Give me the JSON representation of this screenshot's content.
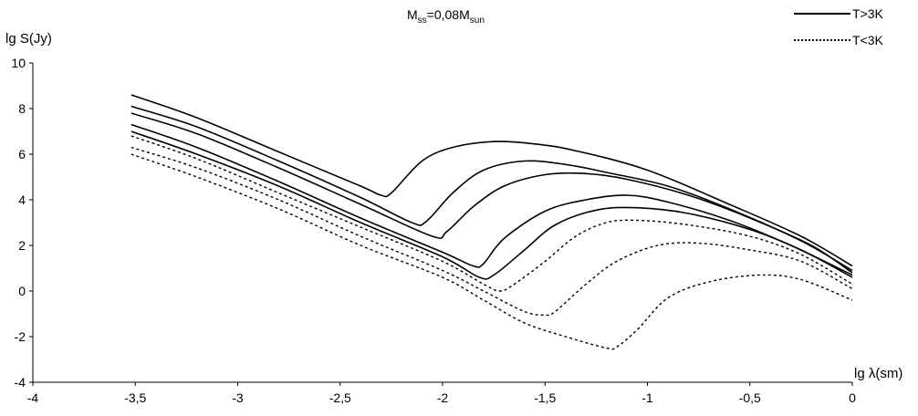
{
  "chart_data": {
    "type": "line",
    "title": {
      "main": "M",
      "sub1": "ss",
      "mid": "=0,08M",
      "sub2": "sun"
    },
    "ylabel": "lg S(Jy)",
    "xlabel": "lg λ(sm)",
    "xlim": [
      -4,
      0
    ],
    "ylim": [
      -4,
      10
    ],
    "x_ticks": [
      -4,
      -3.5,
      -3,
      -2.5,
      -2,
      -1.5,
      -1,
      -0.5,
      0
    ],
    "x_tick_labels": [
      "-4",
      "-3,5",
      "-3",
      "-2,5",
      "-2",
      "-1,5",
      "-1",
      "-0,5",
      "0"
    ],
    "y_ticks": [
      -4,
      -2,
      0,
      2,
      4,
      6,
      8,
      10
    ],
    "y_tick_labels": [
      "-4",
      "-2",
      "0",
      "2",
      "4",
      "6",
      "8",
      "10"
    ],
    "legend": [
      {
        "label": "T>3K",
        "style": "solid"
      },
      {
        "label": "T<3K",
        "style": "dotted"
      }
    ],
    "legend_position": "top-right",
    "grid": false,
    "series": [
      {
        "style": "solid",
        "points": [
          [
            -3.52,
            8.6
          ],
          [
            -3.2,
            7.6
          ],
          [
            -2.8,
            6.1
          ],
          [
            -2.4,
            4.6
          ],
          [
            -2.3,
            4.2
          ],
          [
            -2.25,
            4.3
          ],
          [
            -2.1,
            5.7
          ],
          [
            -1.95,
            6.3
          ],
          [
            -1.75,
            6.55
          ],
          [
            -1.55,
            6.45
          ],
          [
            -1.35,
            6.15
          ],
          [
            -1.0,
            5.3
          ],
          [
            -0.6,
            3.8
          ],
          [
            -0.25,
            2.4
          ],
          [
            0,
            1.1
          ]
        ]
      },
      {
        "style": "solid",
        "points": [
          [
            -3.52,
            8.1
          ],
          [
            -3.2,
            7.2
          ],
          [
            -2.8,
            5.7
          ],
          [
            -2.4,
            4.1
          ],
          [
            -2.15,
            3.0
          ],
          [
            -2.08,
            3.05
          ],
          [
            -1.95,
            4.3
          ],
          [
            -1.8,
            5.3
          ],
          [
            -1.6,
            5.7
          ],
          [
            -1.4,
            5.55
          ],
          [
            -1.2,
            5.2
          ],
          [
            -0.9,
            4.6
          ],
          [
            -0.6,
            3.6
          ],
          [
            -0.25,
            2.2
          ],
          [
            0,
            0.9
          ]
        ]
      },
      {
        "style": "solid",
        "points": [
          [
            -3.52,
            7.8
          ],
          [
            -3.2,
            6.9
          ],
          [
            -2.8,
            5.4
          ],
          [
            -2.4,
            3.8
          ],
          [
            -2.05,
            2.4
          ],
          [
            -1.98,
            2.6
          ],
          [
            -1.85,
            3.7
          ],
          [
            -1.7,
            4.6
          ],
          [
            -1.5,
            5.1
          ],
          [
            -1.3,
            5.15
          ],
          [
            -1.1,
            4.9
          ],
          [
            -0.8,
            4.2
          ],
          [
            -0.5,
            3.2
          ],
          [
            -0.2,
            2.0
          ],
          [
            0,
            0.8
          ]
        ]
      },
      {
        "style": "solid",
        "points": [
          [
            -3.52,
            7.3
          ],
          [
            -3.2,
            6.3
          ],
          [
            -2.8,
            4.8
          ],
          [
            -2.4,
            3.2
          ],
          [
            -2.0,
            1.7
          ],
          [
            -1.85,
            1.1
          ],
          [
            -1.8,
            1.2
          ],
          [
            -1.7,
            2.3
          ],
          [
            -1.5,
            3.5
          ],
          [
            -1.3,
            4.0
          ],
          [
            -1.1,
            4.2
          ],
          [
            -0.9,
            3.9
          ],
          [
            -0.6,
            3.1
          ],
          [
            -0.3,
            2.0
          ],
          [
            0,
            0.7
          ]
        ]
      },
      {
        "style": "solid",
        "points": [
          [
            -3.52,
            7.0
          ],
          [
            -3.2,
            6.0
          ],
          [
            -2.8,
            4.6
          ],
          [
            -2.4,
            3.0
          ],
          [
            -2.0,
            1.5
          ],
          [
            -1.82,
            0.6
          ],
          [
            -1.75,
            0.7
          ],
          [
            -1.6,
            1.8
          ],
          [
            -1.45,
            2.9
          ],
          [
            -1.25,
            3.55
          ],
          [
            -1.05,
            3.65
          ],
          [
            -0.8,
            3.4
          ],
          [
            -0.5,
            2.7
          ],
          [
            -0.25,
            1.8
          ],
          [
            0,
            0.6
          ]
        ]
      },
      {
        "style": "dotted",
        "points": [
          [
            -3.52,
            6.8
          ],
          [
            -3.2,
            5.8
          ],
          [
            -2.8,
            4.3
          ],
          [
            -2.4,
            2.8
          ],
          [
            -2.0,
            1.3
          ],
          [
            -1.8,
            0.3
          ],
          [
            -1.72,
            0.0
          ],
          [
            -1.65,
            0.3
          ],
          [
            -1.5,
            1.3
          ],
          [
            -1.35,
            2.4
          ],
          [
            -1.2,
            3.0
          ],
          [
            -1.05,
            3.1
          ],
          [
            -0.8,
            2.9
          ],
          [
            -0.5,
            2.4
          ],
          [
            -0.25,
            1.6
          ],
          [
            0,
            0.3
          ]
        ]
      },
      {
        "style": "dotted",
        "points": [
          [
            -3.52,
            6.3
          ],
          [
            -3.2,
            5.4
          ],
          [
            -2.8,
            4.0
          ],
          [
            -2.4,
            2.4
          ],
          [
            -2.0,
            0.9
          ],
          [
            -1.8,
            0.0
          ],
          [
            -1.6,
            -0.9
          ],
          [
            -1.5,
            -1.05
          ],
          [
            -1.45,
            -0.9
          ],
          [
            -1.3,
            0.3
          ],
          [
            -1.15,
            1.3
          ],
          [
            -0.95,
            2.0
          ],
          [
            -0.75,
            2.1
          ],
          [
            -0.5,
            1.8
          ],
          [
            -0.25,
            1.3
          ],
          [
            0,
            0.1
          ]
        ]
      },
      {
        "style": "dotted",
        "points": [
          [
            -3.52,
            6.0
          ],
          [
            -3.2,
            5.0
          ],
          [
            -2.8,
            3.6
          ],
          [
            -2.4,
            2.0
          ],
          [
            -2.0,
            0.6
          ],
          [
            -1.8,
            -0.4
          ],
          [
            -1.6,
            -1.4
          ],
          [
            -1.4,
            -2.0
          ],
          [
            -1.2,
            -2.5
          ],
          [
            -1.15,
            -2.45
          ],
          [
            -1.05,
            -1.7
          ],
          [
            -0.9,
            -0.3
          ],
          [
            -0.7,
            0.4
          ],
          [
            -0.45,
            0.7
          ],
          [
            -0.25,
            0.5
          ],
          [
            0,
            -0.4
          ]
        ]
      }
    ]
  }
}
